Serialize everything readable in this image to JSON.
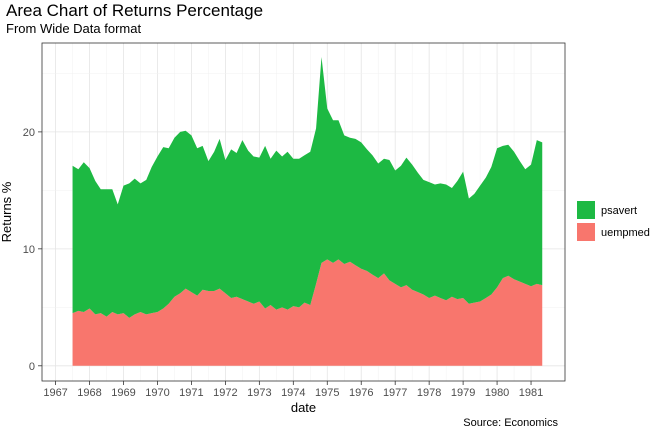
{
  "chart_data": {
    "type": "area",
    "stacked": true,
    "title": "Area Chart of Returns Percentage",
    "subtitle": "From Wide Data format",
    "caption": "Source: Economics",
    "xlabel": "date",
    "ylabel": "Returns %",
    "x_ticks": [
      "1967",
      "1968",
      "1969",
      "1970",
      "1971",
      "1972",
      "1973",
      "1974",
      "1975",
      "1976",
      "1977",
      "1978",
      "1979",
      "1980",
      "1981"
    ],
    "x_range": [
      1966.6,
      1982.0
    ],
    "y_ticks": [
      0,
      10,
      20
    ],
    "ylim": [
      -1.3,
      27.6
    ],
    "grid": true,
    "legend_position": "right",
    "x": [
      1967.5,
      1967.67,
      1967.83,
      1968.0,
      1968.17,
      1968.33,
      1968.5,
      1968.67,
      1968.83,
      1969.0,
      1969.17,
      1969.33,
      1969.5,
      1969.67,
      1969.83,
      1970.0,
      1970.17,
      1970.33,
      1970.5,
      1970.67,
      1970.83,
      1971.0,
      1971.17,
      1971.33,
      1971.5,
      1971.67,
      1971.83,
      1972.0,
      1972.17,
      1972.33,
      1972.5,
      1972.67,
      1972.83,
      1973.0,
      1973.17,
      1973.33,
      1973.5,
      1973.67,
      1973.83,
      1974.0,
      1974.17,
      1974.33,
      1974.5,
      1974.67,
      1974.83,
      1975.0,
      1975.17,
      1975.33,
      1975.5,
      1975.67,
      1975.83,
      1976.0,
      1976.17,
      1976.33,
      1976.5,
      1976.67,
      1976.83,
      1977.0,
      1977.17,
      1977.33,
      1977.5,
      1977.67,
      1977.83,
      1978.0,
      1978.17,
      1978.33,
      1978.5,
      1978.67,
      1978.83,
      1979.0,
      1979.17,
      1979.33,
      1979.5,
      1979.67,
      1979.83,
      1980.0,
      1980.17,
      1980.33,
      1980.5,
      1980.67,
      1980.83,
      1981.0,
      1981.17,
      1981.33
    ],
    "series": [
      {
        "name": "uempmed",
        "color": "#F8766D",
        "values": [
          4.5,
          4.7,
          4.6,
          4.9,
          4.4,
          4.5,
          4.2,
          4.6,
          4.4,
          4.5,
          4.1,
          4.4,
          4.6,
          4.4,
          4.5,
          4.6,
          4.9,
          5.3,
          5.9,
          6.2,
          6.6,
          6.3,
          6.0,
          6.5,
          6.4,
          6.4,
          6.6,
          6.2,
          5.8,
          5.9,
          5.7,
          5.5,
          5.3,
          5.5,
          4.9,
          5.2,
          4.8,
          5.0,
          4.8,
          5.1,
          5.0,
          5.4,
          5.2,
          7.0,
          8.8,
          9.1,
          8.8,
          9.1,
          8.7,
          8.9,
          8.6,
          8.3,
          8.1,
          7.8,
          7.5,
          7.9,
          7.3,
          7.0,
          6.7,
          6.9,
          6.5,
          6.3,
          6.1,
          5.8,
          6.0,
          5.8,
          5.6,
          5.9,
          5.7,
          5.8,
          5.3,
          5.4,
          5.5,
          5.8,
          6.1,
          6.7,
          7.5,
          7.7,
          7.4,
          7.2,
          7.0,
          6.8,
          7.0,
          6.9
        ]
      },
      {
        "name": "psavert",
        "color": "#1DB943",
        "values": [
          12.6,
          12.1,
          12.8,
          12.0,
          11.4,
          10.6,
          10.9,
          10.5,
          9.4,
          10.9,
          11.5,
          11.6,
          11.0,
          11.5,
          12.5,
          13.3,
          13.8,
          13.3,
          13.6,
          13.8,
          13.5,
          13.4,
          12.6,
          12.3,
          11.1,
          11.9,
          12.8,
          11.4,
          12.7,
          12.3,
          13.6,
          12.9,
          12.6,
          12.3,
          13.9,
          12.5,
          13.6,
          12.9,
          13.5,
          12.6,
          12.7,
          12.6,
          13.1,
          13.3,
          17.6,
          12.9,
          12.2,
          11.9,
          11.0,
          10.6,
          10.8,
          10.8,
          10.4,
          10.2,
          9.8,
          9.8,
          10.3,
          9.7,
          10.4,
          10.9,
          10.7,
          10.2,
          9.8,
          9.9,
          9.5,
          9.8,
          9.9,
          9.3,
          10.1,
          10.8,
          9.0,
          9.3,
          9.9,
          10.3,
          10.9,
          11.9,
          11.3,
          11.2,
          10.9,
          10.3,
          9.8,
          10.4,
          12.3,
          12.2
        ]
      }
    ]
  }
}
